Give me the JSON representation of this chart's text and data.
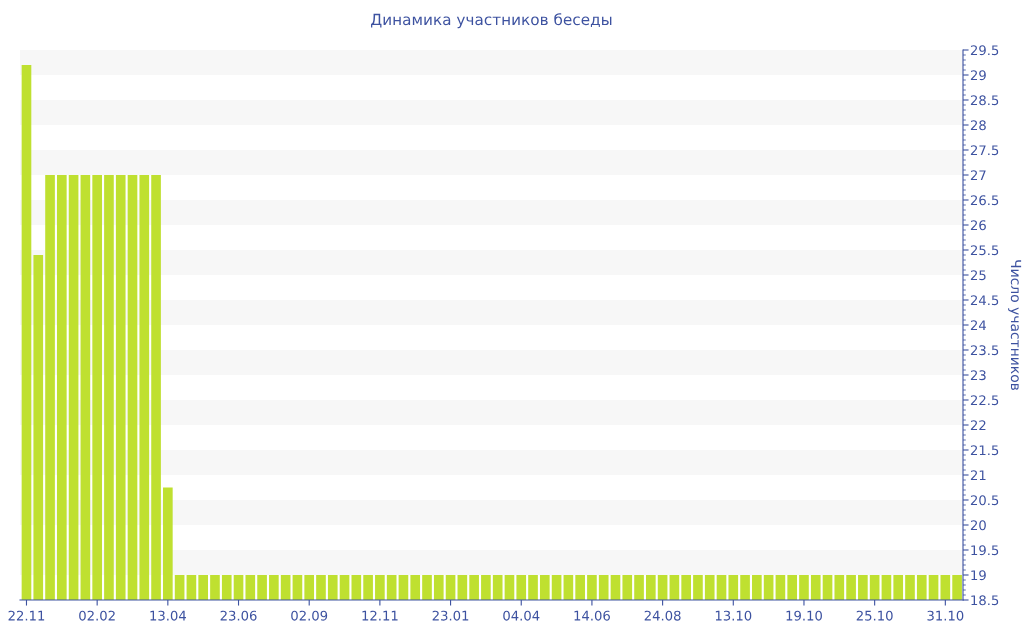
{
  "chart_data": {
    "type": "bar",
    "title": "Динамика участников беседы",
    "ylabel": "Число участников",
    "categories": [
      "22.11",
      null,
      null,
      null,
      null,
      null,
      "02.02",
      null,
      null,
      null,
      null,
      null,
      "13.04",
      null,
      null,
      null,
      null,
      null,
      "23.06",
      null,
      null,
      null,
      null,
      null,
      "02.09",
      null,
      null,
      null,
      null,
      null,
      "12.11",
      null,
      null,
      null,
      null,
      null,
      "23.01",
      null,
      null,
      null,
      null,
      null,
      "04.04",
      null,
      null,
      null,
      null,
      null,
      "14.06",
      null,
      null,
      null,
      null,
      null,
      "24.08",
      null,
      null,
      null,
      null,
      null,
      "13.10",
      null,
      null,
      null,
      null,
      null,
      "19.10",
      null,
      null,
      null,
      null,
      null,
      "25.10",
      null,
      null,
      null,
      null,
      null,
      "31.10",
      null
    ],
    "values": [
      29.2,
      25.4,
      27,
      27,
      27,
      27,
      27,
      27,
      27,
      27,
      27,
      27,
      20.75,
      19,
      19,
      19,
      19,
      19,
      19,
      19,
      19,
      19,
      19,
      19,
      19,
      19,
      19,
      19,
      19,
      19,
      19,
      19,
      19,
      19,
      19,
      19,
      19,
      19,
      19,
      19,
      19,
      19,
      19,
      19,
      19,
      19,
      19,
      19,
      19,
      19,
      19,
      19,
      19,
      19,
      19,
      19,
      19,
      19,
      19,
      19,
      19,
      19,
      19,
      19,
      19,
      19,
      19,
      19,
      19,
      19,
      19,
      19,
      19,
      19,
      19,
      19,
      19,
      19,
      19,
      19
    ],
    "color": "#bfe030",
    "ylim": [
      18.5,
      29.5
    ],
    "yticks": [
      18.5,
      19,
      19.5,
      20,
      20.5,
      21,
      21.5,
      22,
      22.5,
      23,
      23.5,
      24,
      24.5,
      25,
      25.5,
      26,
      26.5,
      27,
      27.5,
      28,
      28.5,
      29,
      29.5
    ],
    "bands": [
      {
        "axis": "y",
        "from": 19,
        "to": 19.5,
        "color": "#f7f7f7"
      },
      {
        "axis": "y",
        "from": 20,
        "to": 20.5,
        "color": "#f7f7f7"
      },
      {
        "axis": "y",
        "from": 21,
        "to": 21.5,
        "color": "#f7f7f7"
      },
      {
        "axis": "y",
        "from": 22,
        "to": 22.5,
        "color": "#f7f7f7"
      },
      {
        "axis": "y",
        "from": 23,
        "to": 23.5,
        "color": "#f7f7f7"
      },
      {
        "axis": "y",
        "from": 24,
        "to": 24.5,
        "color": "#f7f7f7"
      },
      {
        "axis": "y",
        "from": 25,
        "to": 25.5,
        "color": "#f7f7f7"
      },
      {
        "axis": "y",
        "from": 26,
        "to": 26.5,
        "color": "#f7f7f7"
      },
      {
        "axis": "y",
        "from": 27,
        "to": 27.5,
        "color": "#f7f7f7"
      },
      {
        "axis": "y",
        "from": 28,
        "to": 28.5,
        "color": "#f7f7f7"
      },
      {
        "axis": "y",
        "from": 29,
        "to": 29.5,
        "color": "#f7f7f7"
      }
    ]
  }
}
